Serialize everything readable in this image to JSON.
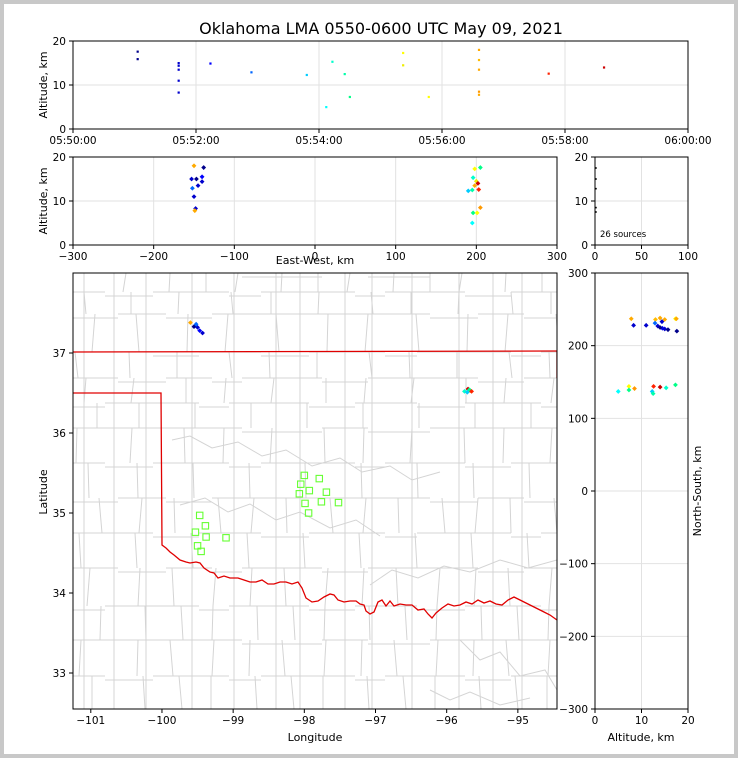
{
  "title": "Oklahoma LMA 0550-0600 UTC May 09, 2021",
  "source_count": "26 sources",
  "chart_data": [
    {
      "id": "time-altitude",
      "type": "scatter",
      "ylabel": "Altitude, km",
      "xlim": [
        "05:50:00",
        "06:00:00"
      ],
      "ylim": [
        0,
        20
      ],
      "x_ticks": [
        "05:50:00",
        "05:52:00",
        "05:54:00",
        "05:56:00",
        "05:58:00",
        "06:00:00"
      ],
      "y_ticks": [
        "0",
        "10",
        "20"
      ],
      "grid": true,
      "points": [
        {
          "t": "05:51:03",
          "alt": 17.6,
          "color": "#00008b"
        },
        {
          "t": "05:51:03",
          "alt": 15.9,
          "color": "#00008b"
        },
        {
          "t": "05:51:43",
          "alt": 15.0,
          "color": "#0000cd"
        },
        {
          "t": "05:51:43",
          "alt": 14.4,
          "color": "#0000cd"
        },
        {
          "t": "05:51:43",
          "alt": 13.5,
          "color": "#0000cd"
        },
        {
          "t": "05:51:43",
          "alt": 11.0,
          "color": "#0000cd"
        },
        {
          "t": "05:51:43",
          "alt": 8.3,
          "color": "#0000cd"
        },
        {
          "t": "05:52:14",
          "alt": 14.9,
          "color": "#0000ff"
        },
        {
          "t": "05:52:54",
          "alt": 12.9,
          "color": "#0066ff"
        },
        {
          "t": "05:53:48",
          "alt": 12.3,
          "color": "#00ccff"
        },
        {
          "t": "05:54:07",
          "alt": 5.0,
          "color": "#00ffff"
        },
        {
          "t": "05:54:13",
          "alt": 15.3,
          "color": "#00ffcc"
        },
        {
          "t": "05:54:25",
          "alt": 12.5,
          "color": "#00ffaa"
        },
        {
          "t": "05:54:30",
          "alt": 7.3,
          "color": "#00ff88"
        },
        {
          "t": "05:55:22",
          "alt": 17.3,
          "color": "#ffff00"
        },
        {
          "t": "05:55:22",
          "alt": 14.5,
          "color": "#eeee00"
        },
        {
          "t": "05:55:47",
          "alt": 7.3,
          "color": "#ffff00"
        },
        {
          "t": "05:56:36",
          "alt": 18.0,
          "color": "#ffaa00"
        },
        {
          "t": "05:56:36",
          "alt": 15.7,
          "color": "#ffbb00"
        },
        {
          "t": "05:56:36",
          "alt": 13.5,
          "color": "#ffaa00"
        },
        {
          "t": "05:56:36",
          "alt": 8.5,
          "color": "#ff9900"
        },
        {
          "t": "05:56:36",
          "alt": 7.8,
          "color": "#ffaa00"
        },
        {
          "t": "05:57:44",
          "alt": 12.6,
          "color": "#ff2200"
        },
        {
          "t": "05:58:38",
          "alt": 14.0,
          "color": "#cc0000"
        }
      ]
    },
    {
      "id": "ew-altitude",
      "type": "scatter",
      "xlabel": "East-West, km",
      "ylabel": "Altitude, km",
      "xlim": [
        -300,
        300
      ],
      "ylim": [
        0,
        20
      ],
      "x_ticks": [
        "−300",
        "−200",
        "−100",
        "0",
        "100",
        "200",
        "300"
      ],
      "y_ticks": [
        "0",
        "10",
        "20"
      ],
      "grid": true,
      "points": [
        {
          "x": -150,
          "alt": 18.0,
          "color": "#ffaa00"
        },
        {
          "x": -138,
          "alt": 17.6,
          "color": "#00008b"
        },
        {
          "x": -153,
          "alt": 15.0,
          "color": "#0000cd"
        },
        {
          "x": -147,
          "alt": 15.0,
          "color": "#00008b"
        },
        {
          "x": -140,
          "alt": 15.5,
          "color": "#0000ff"
        },
        {
          "x": -140,
          "alt": 14.4,
          "color": "#0000cd"
        },
        {
          "x": -145,
          "alt": 13.5,
          "color": "#0000cd"
        },
        {
          "x": -152,
          "alt": 12.9,
          "color": "#0066ff"
        },
        {
          "x": -150,
          "alt": 11.0,
          "color": "#0000cd"
        },
        {
          "x": -148,
          "alt": 8.3,
          "color": "#0000cd"
        },
        {
          "x": -149,
          "alt": 7.8,
          "color": "#ffaa00"
        },
        {
          "x": 198,
          "alt": 17.3,
          "color": "#ffff00"
        },
        {
          "x": 205,
          "alt": 17.6,
          "color": "#00ff88"
        },
        {
          "x": 196,
          "alt": 15.3,
          "color": "#00ffcc"
        },
        {
          "x": 200,
          "alt": 14.5,
          "color": "#eeee00"
        },
        {
          "x": 202,
          "alt": 14.0,
          "color": "#cc0000"
        },
        {
          "x": 198,
          "alt": 13.5,
          "color": "#ffaa00"
        },
        {
          "x": 203,
          "alt": 12.6,
          "color": "#ff2200"
        },
        {
          "x": 190,
          "alt": 12.3,
          "color": "#00ccff"
        },
        {
          "x": 195,
          "alt": 12.5,
          "color": "#00ffaa"
        },
        {
          "x": 205,
          "alt": 8.5,
          "color": "#ff9900"
        },
        {
          "x": 196,
          "alt": 7.3,
          "color": "#00ff88"
        },
        {
          "x": 201,
          "alt": 7.3,
          "color": "#ffff00"
        },
        {
          "x": 195,
          "alt": 5.0,
          "color": "#00ffff"
        }
      ]
    },
    {
      "id": "altitude-histogram",
      "type": "scatter",
      "xlim": [
        0,
        100
      ],
      "ylim": [
        0,
        20
      ],
      "x_ticks": [
        "0",
        "50",
        "100"
      ],
      "y_ticks": [
        "0",
        "10",
        "20"
      ],
      "grid": true,
      "points": [
        {
          "count": 1,
          "alt": 17.5
        },
        {
          "count": 1,
          "alt": 15.0
        },
        {
          "count": 1,
          "alt": 12.8
        },
        {
          "count": 1,
          "alt": 8.5
        },
        {
          "count": 1,
          "alt": 7.5
        }
      ]
    },
    {
      "id": "plan-view",
      "type": "scatter",
      "xlabel": "Longitude",
      "ylabel": "Latitude",
      "xlim": [
        -101.25,
        -94.45
      ],
      "ylim": [
        32.55,
        38.0
      ],
      "x_ticks": [
        "−101",
        "−100",
        "−99",
        "−98",
        "−97",
        "−96",
        "−95"
      ],
      "y_ticks": [
        "33",
        "34",
        "35",
        "36",
        "37"
      ],
      "points": [
        {
          "lon": -99.6,
          "lat": 37.38,
          "color": "#ffaa00"
        },
        {
          "lon": -99.55,
          "lat": 37.33,
          "color": "#00008b"
        },
        {
          "lon": -99.5,
          "lat": 37.32,
          "color": "#0000cd"
        },
        {
          "lon": -99.47,
          "lat": 37.28,
          "color": "#0000ff"
        },
        {
          "lon": -99.43,
          "lat": 37.25,
          "color": "#0000cd"
        },
        {
          "lon": -99.52,
          "lat": 37.36,
          "color": "#0066ff"
        },
        {
          "lon": -95.7,
          "lat": 36.55,
          "color": "#cc0000"
        },
        {
          "lon": -95.67,
          "lat": 36.53,
          "color": "#ffaa00"
        },
        {
          "lon": -95.75,
          "lat": 36.52,
          "color": "#00ffcc"
        },
        {
          "lon": -95.68,
          "lat": 36.54,
          "color": "#00ff88"
        },
        {
          "lon": -95.71,
          "lat": 36.51,
          "color": "#00ccff"
        },
        {
          "lon": -95.65,
          "lat": 36.52,
          "color": "#ff2200"
        }
      ],
      "stations": [
        {
          "lon": -99.47,
          "lat": 34.97
        },
        {
          "lon": -99.39,
          "lat": 34.84
        },
        {
          "lon": -99.53,
          "lat": 34.76
        },
        {
          "lon": -99.38,
          "lat": 34.7
        },
        {
          "lon": -99.5,
          "lat": 34.59
        },
        {
          "lon": -99.45,
          "lat": 34.52
        },
        {
          "lon": -99.1,
          "lat": 34.69
        },
        {
          "lon": -98.0,
          "lat": 35.47
        },
        {
          "lon": -98.05,
          "lat": 35.36
        },
        {
          "lon": -98.07,
          "lat": 35.24
        },
        {
          "lon": -97.93,
          "lat": 35.28
        },
        {
          "lon": -97.99,
          "lat": 35.12
        },
        {
          "lon": -97.94,
          "lat": 35.0
        },
        {
          "lon": -97.79,
          "lat": 35.43
        },
        {
          "lon": -97.76,
          "lat": 35.14
        },
        {
          "lon": -97.69,
          "lat": 35.26
        },
        {
          "lon": -97.52,
          "lat": 35.13
        }
      ]
    },
    {
      "id": "altitude-ns",
      "type": "scatter",
      "xlabel": "Altitude, km",
      "ylabel": "North-South, km",
      "xlim": [
        0,
        20
      ],
      "ylim": [
        -300,
        300
      ],
      "x_ticks": [
        "0",
        "10",
        "20"
      ],
      "y_ticks": [
        "−300",
        "−200",
        "−100",
        "0",
        "100",
        "200",
        "300"
      ],
      "grid": true,
      "points": [
        {
          "alt": 7.8,
          "ns": 237,
          "color": "#ffaa00"
        },
        {
          "alt": 13.0,
          "ns": 236,
          "color": "#ffbb00"
        },
        {
          "alt": 14.0,
          "ns": 238,
          "color": "#ffaa00"
        },
        {
          "alt": 15.0,
          "ns": 236,
          "color": "#ffaa00"
        },
        {
          "alt": 17.3,
          "ns": 237,
          "color": "#ffff00"
        },
        {
          "alt": 17.5,
          "ns": 237,
          "color": "#ffaa00"
        },
        {
          "alt": 14.4,
          "ns": 233,
          "color": "#0000cd"
        },
        {
          "alt": 12.9,
          "ns": 231,
          "color": "#0066ff"
        },
        {
          "alt": 8.3,
          "ns": 228,
          "color": "#0000cd"
        },
        {
          "alt": 11.0,
          "ns": 228,
          "color": "#0000cd"
        },
        {
          "alt": 13.5,
          "ns": 227,
          "color": "#0000cd"
        },
        {
          "alt": 14.5,
          "ns": 224,
          "color": "#0000ff"
        },
        {
          "alt": 15.0,
          "ns": 223,
          "color": "#0000cd"
        },
        {
          "alt": 14.0,
          "ns": 225,
          "color": "#00008b"
        },
        {
          "alt": 17.6,
          "ns": 220,
          "color": "#00008b"
        },
        {
          "alt": 15.7,
          "ns": 222,
          "color": "#00008b"
        },
        {
          "alt": 5.0,
          "ns": 137,
          "color": "#00ffff"
        },
        {
          "alt": 7.3,
          "ns": 144,
          "color": "#ffff00"
        },
        {
          "alt": 7.3,
          "ns": 139,
          "color": "#00ff88"
        },
        {
          "alt": 8.5,
          "ns": 141,
          "color": "#ff9900"
        },
        {
          "alt": 12.3,
          "ns": 137,
          "color": "#00ccff"
        },
        {
          "alt": 12.6,
          "ns": 144,
          "color": "#ff2200"
        },
        {
          "alt": 12.5,
          "ns": 134,
          "color": "#00ffaa"
        },
        {
          "alt": 14.0,
          "ns": 143,
          "color": "#cc0000"
        },
        {
          "alt": 15.3,
          "ns": 142,
          "color": "#00ffcc"
        },
        {
          "alt": 17.3,
          "ns": 146,
          "color": "#00ff88"
        }
      ]
    }
  ]
}
